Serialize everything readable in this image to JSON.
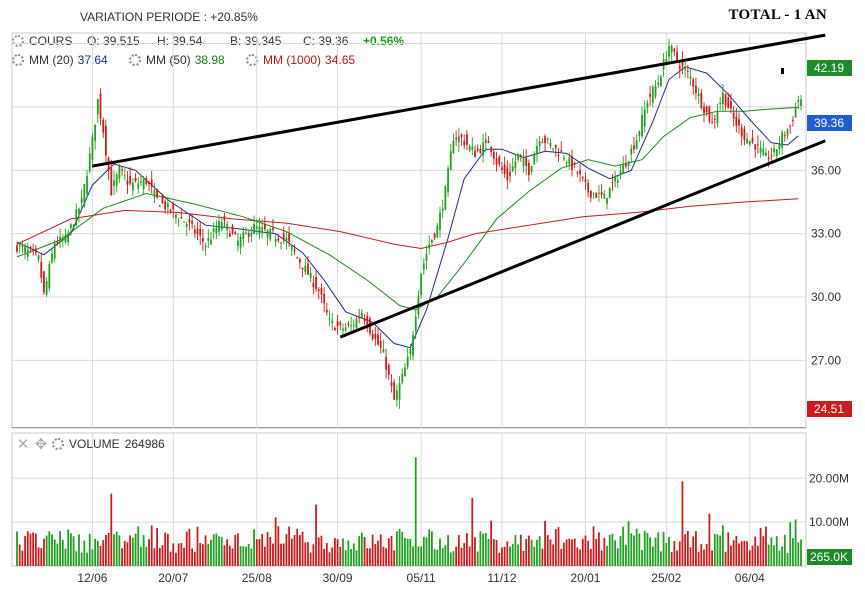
{
  "header": {
    "variation_label": "VARIATION PERIODE : +20.85%",
    "title": "TOTAL - 1 AN"
  },
  "info": {
    "cours_label": "COURS",
    "open": "O: 39.515",
    "high": "H: 39.54",
    "low": "B: 39.345",
    "close": "C: 39.36",
    "change": "+0.56%",
    "ma20_label": "MM (20)",
    "ma20_value": "37.64",
    "ma50_label": "MM (50)",
    "ma50_value": "38.98",
    "ma1000_label": "MM (1000)",
    "ma1000_value": "34.65"
  },
  "volume_header": {
    "label": "VOLUME",
    "value": "264986"
  },
  "badges": {
    "price_high": "42.19",
    "price_last": "39.36",
    "price_low": "24.51",
    "volume_last": "265.0K"
  },
  "colors": {
    "up": "#22a022",
    "down": "#c81e1e",
    "ma20": "#1f2e8a",
    "ma50": "#1f8a1f",
    "ma1000": "#c02020",
    "trend": "#000000",
    "grid": "#d9d9d9",
    "badge_green": "#1f8a2a",
    "badge_blue": "#1f5fd0",
    "badge_red": "#c81e1e"
  },
  "chart_data": {
    "type": "candlestick",
    "price_axis": {
      "ticks": [
        "36.00",
        "33.00",
        "30.00",
        "27.00"
      ],
      "ylim": [
        23.8,
        42.5
      ]
    },
    "volume_axis": {
      "ticks": [
        "20.00M",
        "10.00M"
      ],
      "ylim": [
        0,
        26
      ]
    },
    "x_ticks": [
      "12/06",
      "20/07",
      "25/08",
      "30/09",
      "05/11",
      "11/12",
      "20/01",
      "25/02",
      "06/04"
    ],
    "close_path": [
      [
        0,
        32.4
      ],
      [
        5,
        32.1
      ],
      [
        8,
        31.8
      ],
      [
        10,
        30.1
      ],
      [
        14,
        32.6
      ],
      [
        18,
        32.7
      ],
      [
        24,
        34.5
      ],
      [
        28,
        37.4
      ],
      [
        30,
        39.3
      ],
      [
        32,
        37.9
      ],
      [
        35,
        35.0
      ],
      [
        38,
        36.0
      ],
      [
        42,
        35.3
      ],
      [
        48,
        35.5
      ],
      [
        52,
        34.6
      ],
      [
        58,
        34.0
      ],
      [
        64,
        33.4
      ],
      [
        70,
        32.5
      ],
      [
        76,
        33.6
      ],
      [
        82,
        32.6
      ],
      [
        88,
        33.3
      ],
      [
        94,
        33.0
      ],
      [
        100,
        32.7
      ],
      [
        106,
        31.5
      ],
      [
        112,
        30.3
      ],
      [
        116,
        28.8
      ],
      [
        120,
        28.5
      ],
      [
        124,
        28.6
      ],
      [
        128,
        29.3
      ],
      [
        132,
        28.2
      ],
      [
        136,
        27.3
      ],
      [
        140,
        25.1
      ],
      [
        143,
        26.2
      ],
      [
        146,
        27.4
      ],
      [
        150,
        31.2
      ],
      [
        153,
        32.5
      ],
      [
        156,
        33.3
      ],
      [
        159,
        35.0
      ],
      [
        162,
        37.6
      ],
      [
        165,
        37.5
      ],
      [
        170,
        36.8
      ],
      [
        175,
        37.4
      ],
      [
        178,
        36.4
      ],
      [
        182,
        35.6
      ],
      [
        186,
        36.7
      ],
      [
        190,
        36.0
      ],
      [
        194,
        37.6
      ],
      [
        200,
        37.0
      ],
      [
        203,
        36.7
      ],
      [
        208,
        35.9
      ],
      [
        212,
        35.0
      ],
      [
        218,
        34.7
      ],
      [
        222,
        35.5
      ],
      [
        226,
        36.4
      ],
      [
        230,
        37.5
      ],
      [
        234,
        39.3
      ],
      [
        238,
        40.2
      ],
      [
        242,
        41.9
      ],
      [
        246,
        41.0
      ],
      [
        250,
        40.4
      ],
      [
        254,
        39.2
      ],
      [
        258,
        38.2
      ],
      [
        262,
        39.6
      ],
      [
        266,
        38.4
      ],
      [
        270,
        37.6
      ],
      [
        274,
        37.2
      ],
      [
        278,
        36.6
      ],
      [
        281,
        36.8
      ],
      [
        284,
        37.6
      ],
      [
        287,
        38.1
      ],
      [
        290,
        39.36
      ]
    ],
    "ma20_path": [
      [
        0,
        32.6
      ],
      [
        10,
        32.0
      ],
      [
        20,
        33.0
      ],
      [
        28,
        35.3
      ],
      [
        36,
        36.3
      ],
      [
        44,
        36.0
      ],
      [
        56,
        34.6
      ],
      [
        70,
        33.4
      ],
      [
        84,
        33.2
      ],
      [
        96,
        33.0
      ],
      [
        106,
        32.1
      ],
      [
        114,
        30.8
      ],
      [
        122,
        29.3
      ],
      [
        132,
        28.8
      ],
      [
        140,
        27.8
      ],
      [
        146,
        27.6
      ],
      [
        152,
        29.4
      ],
      [
        160,
        32.8
      ],
      [
        166,
        35.6
      ],
      [
        174,
        37.0
      ],
      [
        180,
        37.0
      ],
      [
        188,
        36.6
      ],
      [
        196,
        36.9
      ],
      [
        204,
        36.8
      ],
      [
        212,
        36.1
      ],
      [
        220,
        35.6
      ],
      [
        228,
        36.0
      ],
      [
        236,
        38.3
      ],
      [
        242,
        40.3
      ],
      [
        248,
        40.9
      ],
      [
        256,
        40.6
      ],
      [
        264,
        39.6
      ],
      [
        272,
        38.4
      ],
      [
        280,
        37.3
      ],
      [
        286,
        37.2
      ],
      [
        290,
        37.64
      ]
    ],
    "ma50_path": [
      [
        0,
        31.9
      ],
      [
        16,
        32.7
      ],
      [
        32,
        34.2
      ],
      [
        48,
        34.9
      ],
      [
        66,
        34.4
      ],
      [
        84,
        33.8
      ],
      [
        100,
        33.1
      ],
      [
        116,
        32.0
      ],
      [
        130,
        30.8
      ],
      [
        142,
        29.6
      ],
      [
        148,
        29.4
      ],
      [
        156,
        30.0
      ],
      [
        166,
        31.6
      ],
      [
        178,
        33.7
      ],
      [
        190,
        35.0
      ],
      [
        202,
        36.1
      ],
      [
        212,
        36.5
      ],
      [
        222,
        36.2
      ],
      [
        232,
        36.5
      ],
      [
        240,
        37.6
      ],
      [
        250,
        38.5
      ],
      [
        260,
        38.8
      ],
      [
        270,
        38.8
      ],
      [
        280,
        38.9
      ],
      [
        290,
        38.98
      ]
    ],
    "ma1000_path": [
      [
        0,
        32.5
      ],
      [
        20,
        33.7
      ],
      [
        40,
        34.1
      ],
      [
        60,
        34.0
      ],
      [
        80,
        33.7
      ],
      [
        100,
        33.5
      ],
      [
        120,
        33.1
      ],
      [
        140,
        32.5
      ],
      [
        150,
        32.3
      ],
      [
        160,
        32.6
      ],
      [
        170,
        33.0
      ],
      [
        190,
        33.4
      ],
      [
        210,
        33.8
      ],
      [
        230,
        34.0
      ],
      [
        250,
        34.3
      ],
      [
        270,
        34.5
      ],
      [
        290,
        34.65
      ]
    ],
    "trend_upper": [
      [
        28,
        36.2
      ],
      [
        300,
        42.4
      ]
    ],
    "trend_lower": [
      [
        120,
        28.1
      ],
      [
        300,
        37.4
      ]
    ],
    "high_marker": [
      [
        242,
        42.4
      ]
    ],
    "peak_volume_index": 148,
    "peak_volume": 24.8,
    "second_volume_index": 247,
    "second_volume": 19.3
  }
}
